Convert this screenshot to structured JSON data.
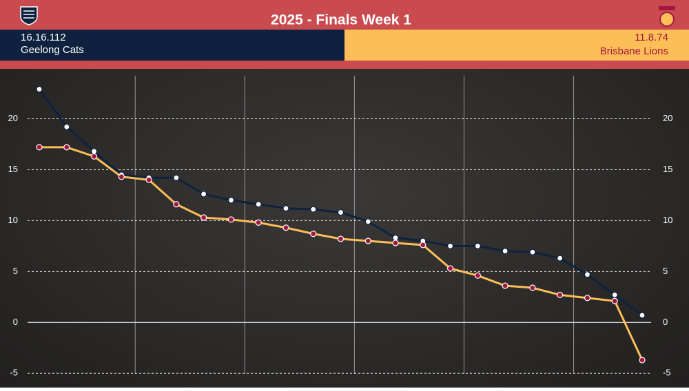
{
  "header": {
    "home_score": "16.16.112",
    "away_score": "11.8.74"
  },
  "chart_data": {
    "type": "line",
    "title": "2025 - Finals Week 1",
    "categories": [
      null,
      null,
      null,
      null,
      null,
      null,
      null,
      null,
      null,
      null,
      null,
      null,
      null,
      null,
      null,
      null,
      null,
      null,
      null,
      null,
      null,
      null,
      null
    ],
    "series": [
      {
        "name": "Geelong Cats",
        "color": "#0e2240",
        "marker": "#ffffff",
        "values": [
          22.9,
          19.2,
          16.8,
          14.5,
          14.2,
          14.2,
          12.6,
          12.0,
          11.6,
          11.2,
          11.1,
          10.8,
          9.9,
          8.3,
          8.0,
          7.5,
          7.5,
          7.0,
          6.9,
          6.3,
          4.7,
          2.7,
          0.7
        ]
      },
      {
        "name": "Brisbane Lions",
        "color": "#fdbe57",
        "marker": "#a3173f",
        "values": [
          17.2,
          17.2,
          16.3,
          14.3,
          14.0,
          11.6,
          10.3,
          10.1,
          9.8,
          9.3,
          8.7,
          8.2,
          8.0,
          7.8,
          7.6,
          5.3,
          4.6,
          3.6,
          3.4,
          2.7,
          2.4,
          2.1,
          -3.7
        ]
      }
    ],
    "ylim": [
      -6.4,
      24.9
    ],
    "yticks": [
      -5,
      0,
      5,
      10,
      15,
      20
    ],
    "grid": true
  }
}
